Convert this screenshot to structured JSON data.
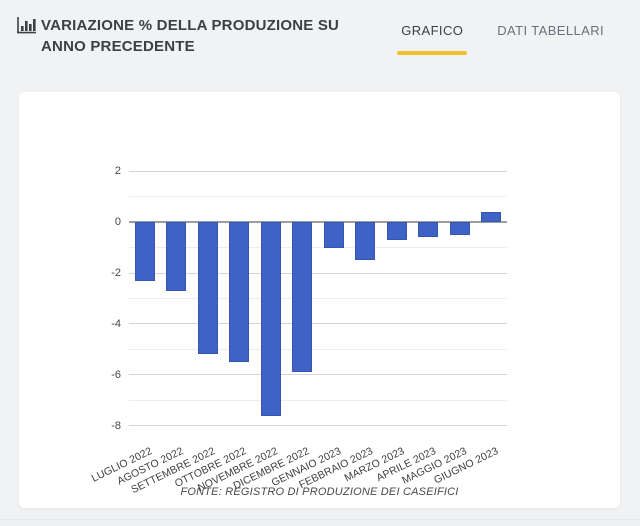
{
  "header": {
    "title": "VARIAZIONE % DELLA PRODUZIONE SU ANNO PRECEDENTE",
    "title_icon": "bar-chart-icon",
    "tabs": [
      {
        "label": "GRAFICO",
        "active": true
      },
      {
        "label": "DATI TABELLARI",
        "active": false
      }
    ],
    "active_tab_underline_color": "#f0c32e"
  },
  "chart_data": {
    "type": "bar",
    "title": "VARIAZIONE % DELLA PRODUZIONE SU ANNO PRECEDENTE",
    "categories": [
      "LUGLIO 2022",
      "AGOSTO 2022",
      "SETTEMBRE 2022",
      "OTTOBRE 2022",
      "NOVEMBRE 2022",
      "DICEMBRE 2022",
      "GENNAIO 2023",
      "FEBBRAIO 2023",
      "MARZO 2023",
      "APRILE 2023",
      "MAGGIO 2023",
      "GIUGNO 2023"
    ],
    "values": [
      -2.3,
      -2.7,
      -5.2,
      -5.5,
      -7.6,
      -5.9,
      -1.0,
      -1.5,
      -0.7,
      -0.6,
      -0.5,
      0.4
    ],
    "xlabel": "",
    "ylabel": "",
    "ylim": [
      -8.6,
      2.6
    ],
    "y_ticks": [
      2,
      0,
      -2,
      -4,
      -6,
      -8
    ],
    "minor_grid_step": 1,
    "grid": "horizontal",
    "legend_position": "none",
    "bar_color": "#3f62c6",
    "source_note": "FONTE: REGISTRO DI PRODUZIONE DEI CASEIFICI"
  },
  "colors": {
    "page_background": "#f1f2f4",
    "card_background": "#ffffff",
    "bar_blue": "#3f62c6",
    "accent_yellow": "#f0c32e",
    "major_gridline": "#d2d4d6",
    "minor_gridline": "#ededed",
    "zero_line": "#9e9e9e",
    "title_text": "#3c4044",
    "inactive_tab_text": "#68707a"
  }
}
